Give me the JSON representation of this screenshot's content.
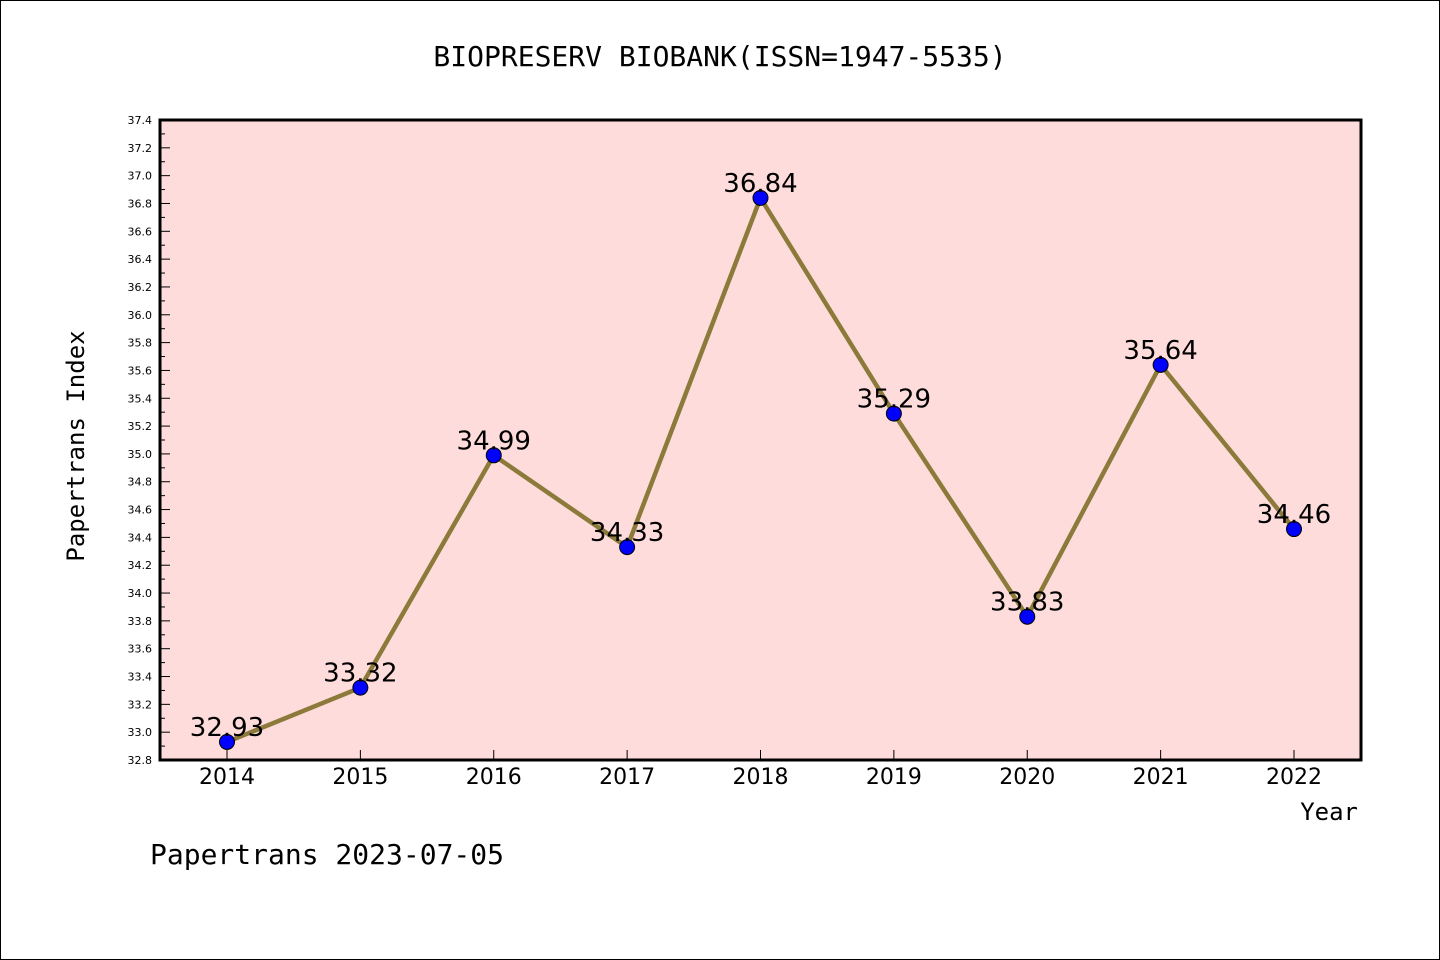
{
  "chart_data": {
    "type": "line",
    "title": "BIOPRESERV BIOBANK(ISSN=1947-5535)",
    "xlabel": "Year",
    "ylabel": "Papertrans Index",
    "categories": [
      "2014",
      "2015",
      "2016",
      "2017",
      "2018",
      "2019",
      "2020",
      "2021",
      "2022"
    ],
    "values": [
      32.93,
      33.32,
      34.99,
      34.33,
      36.84,
      35.29,
      33.83,
      35.64,
      34.46
    ],
    "data_labels": [
      "32.93",
      "33.32",
      "34.99",
      "34.33",
      "36.84",
      "35.29",
      "33.83",
      "35.64",
      "34.46"
    ],
    "ylim": [
      32.8,
      37.4
    ],
    "yticks": [
      "32.8",
      "33.0",
      "33.2",
      "33.4",
      "33.6",
      "33.8",
      "34.0",
      "34.2",
      "34.4",
      "34.6",
      "34.8",
      "35.0",
      "35.2",
      "35.4",
      "35.6",
      "35.8",
      "36.0",
      "36.2",
      "36.4",
      "36.6",
      "36.8",
      "37.0",
      "37.2",
      "37.4"
    ],
    "grid": false,
    "legend": "none",
    "colors": {
      "line": "#8b7a3a",
      "marker": "#0000ff",
      "plot_background": "#ffdcdc"
    }
  },
  "footer": "Papertrans 2023-07-05"
}
